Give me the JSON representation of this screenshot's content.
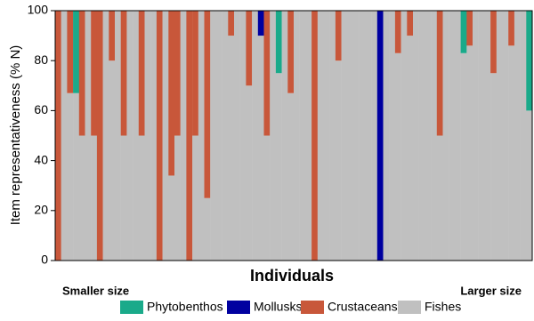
{
  "chart_data": {
    "type": "stacked_bar",
    "y_label": "Item representativeness (% N)",
    "x_label": "Individuals",
    "annotations": [
      "Smaller size",
      "Larger size"
    ],
    "ylim": [
      0,
      100
    ],
    "yticks": [
      0,
      20,
      40,
      60,
      80,
      100
    ],
    "legend": "bottom",
    "categories": [
      null,
      null,
      null,
      null,
      null,
      null,
      null,
      null,
      null,
      null,
      null,
      null,
      null,
      null,
      null,
      null,
      null,
      null,
      null,
      null,
      null,
      null,
      null,
      null,
      null,
      null,
      null,
      null,
      null,
      null,
      null,
      null,
      null,
      null,
      null,
      null,
      null,
      null,
      null,
      null,
      null,
      null,
      null,
      null,
      null,
      null,
      null,
      null,
      null,
      null,
      null,
      null,
      null,
      null,
      null,
      null,
      null,
      null,
      null,
      null,
      null,
      null,
      null,
      null,
      null,
      null,
      null,
      null,
      null,
      null,
      null,
      null,
      null,
      null,
      null,
      null,
      null,
      null,
      null,
      null
    ],
    "series": [
      {
        "name": "Phytobenthos",
        "color": "#1aaa8a",
        "values": [
          0,
          0,
          0,
          33,
          0,
          0,
          0,
          0,
          0,
          0,
          0,
          0,
          0,
          0,
          0,
          0,
          0,
          0,
          0,
          0,
          0,
          0,
          0,
          0,
          0,
          0,
          0,
          0,
          0,
          0,
          0,
          0,
          0,
          0,
          0,
          0,
          0,
          25,
          0,
          0,
          0,
          0,
          0,
          0,
          0,
          0,
          0,
          0,
          0,
          0,
          0,
          0,
          0,
          0,
          0,
          0,
          0,
          0,
          0,
          0,
          0,
          0,
          0,
          0,
          0,
          0,
          0,
          0,
          17,
          0,
          0,
          0,
          0,
          0,
          0,
          0,
          0,
          0,
          0,
          40
        ]
      },
      {
        "name": "Mollusks",
        "color": "#0000a0",
        "values": [
          0,
          0,
          0,
          0,
          0,
          0,
          0,
          0,
          0,
          0,
          0,
          0,
          0,
          0,
          0,
          0,
          0,
          0,
          0,
          0,
          0,
          0,
          0,
          0,
          0,
          0,
          0,
          0,
          0,
          0,
          0,
          0,
          0,
          0,
          10,
          0,
          0,
          0,
          0,
          0,
          0,
          0,
          0,
          0,
          0,
          0,
          0,
          0,
          0,
          0,
          0,
          0,
          0,
          0,
          100,
          0,
          0,
          0,
          0,
          0,
          0,
          0,
          0,
          0,
          0,
          0,
          0,
          0,
          0,
          0,
          0,
          0,
          0,
          0,
          0,
          0,
          0,
          0,
          0,
          0
        ]
      },
      {
        "name": "Crustaceans",
        "color": "#c8573a",
        "values": [
          100,
          0,
          33,
          0,
          50,
          0,
          50,
          100,
          0,
          20,
          0,
          50,
          0,
          0,
          50,
          0,
          0,
          100,
          0,
          66,
          50,
          0,
          100,
          50,
          0,
          75,
          0,
          0,
          0,
          10,
          0,
          0,
          30,
          0,
          0,
          50,
          0,
          0,
          0,
          33,
          0,
          0,
          0,
          100,
          0,
          0,
          0,
          20,
          0,
          0,
          0,
          0,
          0,
          0,
          0,
          0,
          0,
          17,
          0,
          10,
          0,
          0,
          0,
          0,
          50,
          0,
          0,
          0,
          0,
          14,
          0,
          0,
          0,
          25,
          0,
          0,
          14,
          0,
          0,
          0
        ]
      },
      {
        "name": "Fishes",
        "color": "#c0c0c0",
        "values": [
          0,
          100,
          67,
          67,
          50,
          100,
          50,
          0,
          100,
          80,
          100,
          50,
          100,
          100,
          50,
          100,
          100,
          0,
          100,
          34,
          50,
          100,
          0,
          50,
          100,
          25,
          100,
          100,
          100,
          90,
          100,
          100,
          70,
          100,
          90,
          50,
          100,
          75,
          100,
          67,
          100,
          100,
          100,
          0,
          100,
          100,
          100,
          80,
          100,
          100,
          100,
          100,
          100,
          100,
          0,
          100,
          100,
          83,
          100,
          90,
          100,
          100,
          100,
          100,
          50,
          100,
          100,
          100,
          83,
          86,
          100,
          100,
          100,
          75,
          100,
          100,
          86,
          100,
          100,
          60
        ]
      }
    ]
  }
}
